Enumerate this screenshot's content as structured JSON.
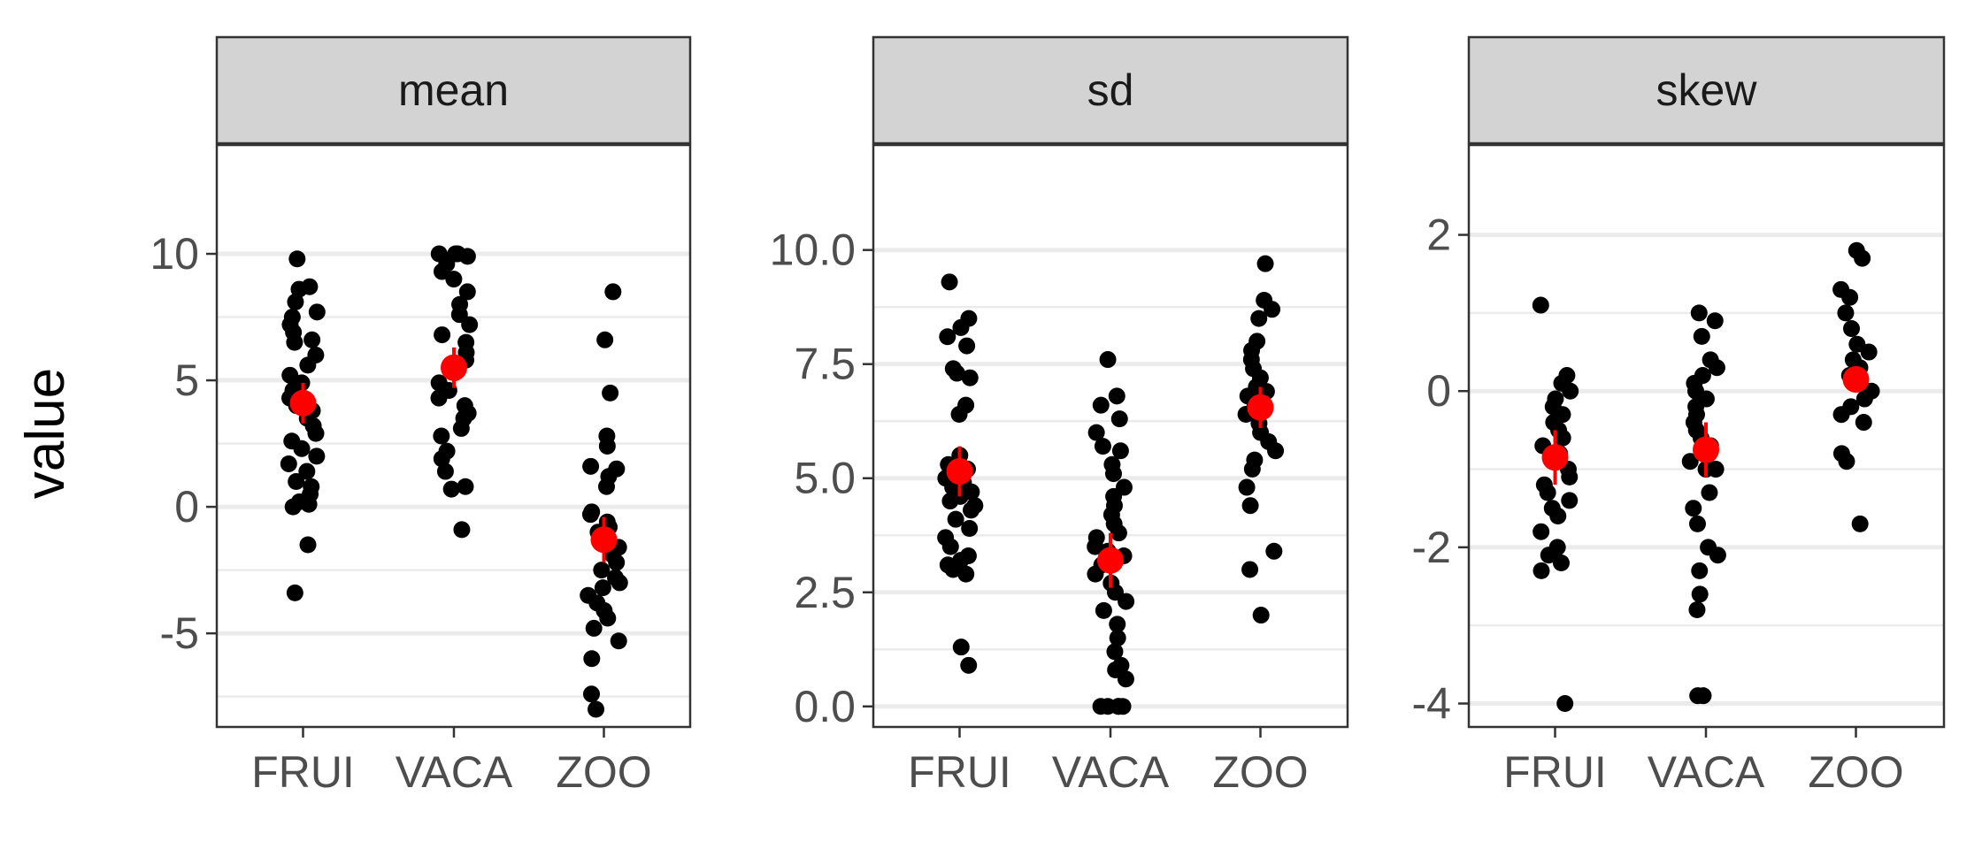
{
  "chart_data": {
    "type": "scatter",
    "facet_layout": "1x3",
    "ylabel": "value",
    "categories": [
      "FRUI",
      "VACA",
      "ZOO"
    ],
    "colors": {
      "point": "#000000",
      "summary": "#ff0000",
      "strip_fill": "#d3d3d3",
      "grid": "#ebebeb"
    },
    "panels": [
      {
        "strip": "mean",
        "ylim": [
          -8.7,
          14.3
        ],
        "y_ticks": [
          -5,
          0,
          5,
          10
        ],
        "y_tick_labels": [
          "-5",
          "0",
          "5",
          "10"
        ],
        "minor_ticks": [
          -7.5,
          -2.5,
          2.5,
          7.5
        ],
        "points": {
          "FRUI": [
            9.8,
            8.7,
            8.6,
            8.1,
            7.7,
            7.5,
            7.2,
            6.9,
            6.6,
            6.5,
            6.0,
            5.6,
            5.2,
            4.9,
            4.6,
            4.3,
            4.0,
            3.8,
            3.5,
            3.2,
            2.9,
            2.6,
            2.3,
            2.0,
            1.7,
            1.4,
            1.0,
            0.8,
            0.5,
            0.2,
            0.1,
            0.0,
            -1.5,
            -3.4
          ],
          "VACA": [
            10.0,
            10.0,
            10.0,
            9.9,
            9.6,
            9.3,
            9.0,
            8.5,
            8.0,
            7.6,
            7.2,
            6.8,
            6.5,
            6.1,
            5.8,
            5.3,
            4.9,
            4.6,
            4.3,
            4.0,
            3.7,
            3.5,
            3.1,
            2.8,
            2.2,
            1.9,
            1.4,
            0.8,
            0.7,
            -0.9
          ],
          "ZOO": [
            8.5,
            6.6,
            4.5,
            2.8,
            2.4,
            1.6,
            1.5,
            1.2,
            0.8,
            -0.2,
            -0.3,
            -0.6,
            -0.8,
            -1.0,
            -1.3,
            -1.6,
            -1.9,
            -2.2,
            -2.5,
            -2.8,
            -3.0,
            -3.2,
            -3.5,
            -3.8,
            -4.1,
            -4.4,
            -4.8,
            -5.3,
            -6.0,
            -7.4,
            -8.0
          ]
        },
        "summary": {
          "FRUI": {
            "mean": 4.1,
            "low": 3.3,
            "high": 4.9
          },
          "VACA": {
            "mean": 5.5,
            "low": 4.7,
            "high": 6.3
          },
          "ZOO": {
            "mean": -1.3,
            "low": -2.2,
            "high": -0.4
          }
        }
      },
      {
        "strip": "sd",
        "ylim": [
          -0.45,
          12.3
        ],
        "y_ticks": [
          0,
          2.5,
          5,
          7.5,
          10
        ],
        "y_tick_labels": [
          "0.0",
          "2.5",
          "5.0",
          "7.5",
          "10.0"
        ],
        "minor_ticks": [
          1.25,
          3.75,
          6.25,
          8.75
        ],
        "points": {
          "FRUI": [
            9.3,
            8.5,
            8.3,
            8.1,
            7.9,
            7.4,
            7.3,
            7.2,
            6.6,
            6.4,
            5.5,
            5.3,
            5.2,
            5.1,
            5.0,
            4.9,
            4.8,
            4.7,
            4.6,
            4.5,
            4.4,
            4.3,
            4.1,
            3.9,
            3.7,
            3.5,
            3.3,
            3.2,
            3.1,
            3.0,
            2.9,
            1.3,
            0.9
          ],
          "VACA": [
            7.6,
            6.8,
            6.6,
            6.3,
            6.0,
            5.7,
            5.6,
            5.3,
            5.1,
            4.8,
            4.6,
            4.4,
            4.2,
            4.0,
            3.8,
            3.7,
            3.5,
            3.4,
            3.3,
            3.1,
            2.9,
            2.7,
            2.5,
            2.3,
            2.1,
            1.8,
            1.5,
            1.2,
            0.9,
            0.8,
            0.6,
            0.0,
            0.0,
            0.0,
            0.0,
            0.0
          ],
          "ZOO": [
            9.7,
            8.9,
            8.7,
            8.5,
            8.0,
            7.8,
            7.6,
            7.4,
            7.2,
            7.0,
            6.9,
            6.8,
            6.6,
            6.4,
            6.2,
            6.0,
            5.8,
            5.6,
            5.4,
            5.2,
            4.8,
            4.4,
            3.4,
            3.0,
            2.0
          ]
        },
        "summary": {
          "FRUI": {
            "mean": 5.15,
            "low": 4.6,
            "high": 5.7
          },
          "VACA": {
            "mean": 3.2,
            "low": 2.6,
            "high": 3.8
          },
          "ZOO": {
            "mean": 6.55,
            "low": 6.1,
            "high": 7.0
          }
        }
      },
      {
        "strip": "skew",
        "ylim": [
          -4.3,
          3.15
        ],
        "y_ticks": [
          -4,
          -2,
          0,
          2
        ],
        "y_tick_labels": [
          "-4",
          "-2",
          "0",
          "2"
        ],
        "minor_ticks": [
          -3,
          -1,
          1
        ],
        "points": {
          "FRUI": [
            1.1,
            0.2,
            0.1,
            0.0,
            -0.1,
            -0.2,
            -0.3,
            -0.4,
            -0.5,
            -0.6,
            -0.7,
            -0.8,
            -0.9,
            -1.0,
            -1.1,
            -1.2,
            -1.3,
            -1.4,
            -1.5,
            -1.6,
            -1.8,
            -2.0,
            -2.1,
            -2.2,
            -2.3,
            -4.0
          ],
          "VACA": [
            1.0,
            0.9,
            0.7,
            0.4,
            0.3,
            0.2,
            0.1,
            0.0,
            -0.1,
            -0.2,
            -0.3,
            -0.4,
            -0.5,
            -0.6,
            -0.7,
            -0.8,
            -0.9,
            -1.0,
            -1.0,
            -1.3,
            -1.5,
            -1.7,
            -2.0,
            -2.1,
            -2.3,
            -2.6,
            -2.8,
            -3.9,
            -3.9
          ],
          "ZOO": [
            1.8,
            1.7,
            1.3,
            1.2,
            1.0,
            0.8,
            0.6,
            0.5,
            0.4,
            0.3,
            0.2,
            0.1,
            0.0,
            -0.1,
            -0.2,
            -0.3,
            -0.4,
            -0.8,
            -0.9,
            -1.7
          ]
        },
        "summary": {
          "FRUI": {
            "mean": -0.85,
            "low": -1.2,
            "high": -0.5
          },
          "VACA": {
            "mean": -0.75,
            "low": -1.1,
            "high": -0.4
          },
          "ZOO": {
            "mean": 0.15,
            "low": 0.0,
            "high": 0.3
          }
        }
      }
    ]
  }
}
